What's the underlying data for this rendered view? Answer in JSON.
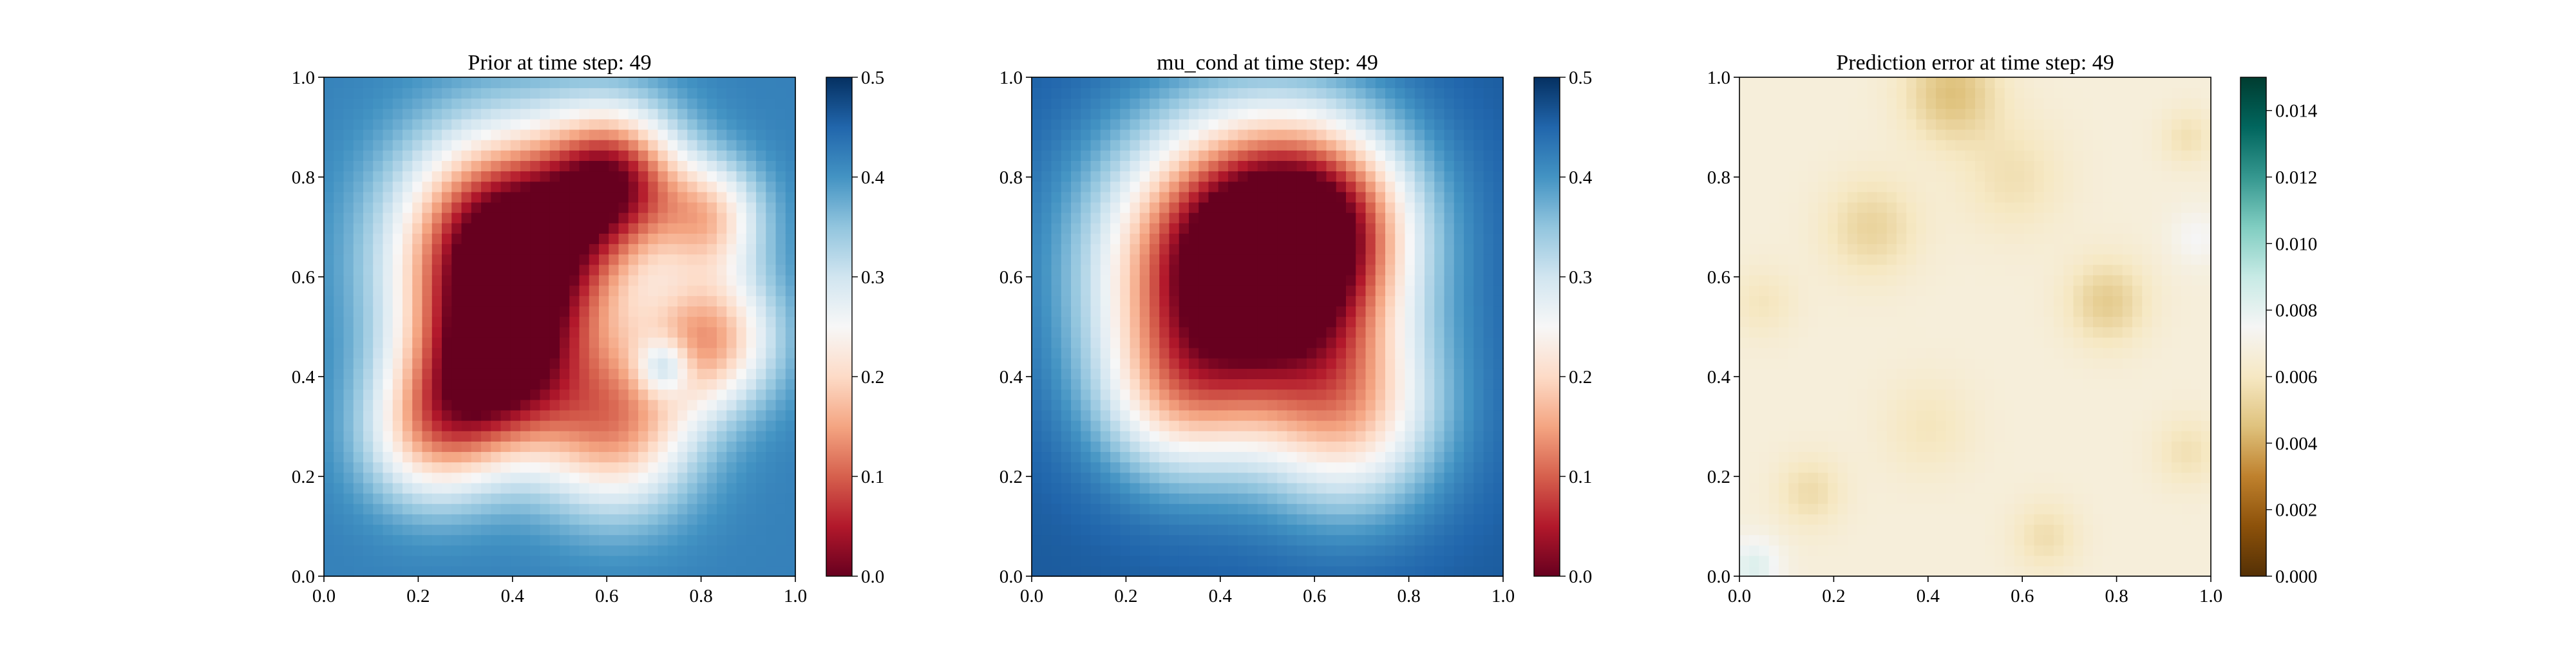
{
  "chart_data": [
    {
      "type": "heatmap",
      "title": "Prior at time step: 49",
      "xlim": [
        0.0,
        1.0
      ],
      "ylim": [
        0.0,
        1.0
      ],
      "x_ticks": [
        "0.0",
        "0.2",
        "0.4",
        "0.6",
        "0.8",
        "1.0"
      ],
      "y_ticks": [
        "0.0",
        "0.2",
        "0.4",
        "0.6",
        "0.8",
        "1.0"
      ],
      "colormap": "RdBu",
      "colorbar": {
        "min": 0.0,
        "max": 0.5,
        "ticks": [
          "0.0",
          "0.1",
          "0.2",
          "0.3",
          "0.4",
          "0.5"
        ]
      },
      "colors": [
        "#67001f",
        "#b2182b",
        "#d6604d",
        "#f4a582",
        "#fddbc7",
        "#f7f7f7",
        "#d1e5f0",
        "#92c5de",
        "#4393c3",
        "#2166ac",
        "#053061"
      ],
      "field": {
        "background": 0.42,
        "blobs": [
          {
            "x": 0.4,
            "y": 0.65,
            "a": -0.52,
            "s": 0.16
          },
          {
            "x": 0.62,
            "y": 0.8,
            "a": -0.3,
            "s": 0.1
          },
          {
            "x": 0.35,
            "y": 0.4,
            "a": -0.32,
            "s": 0.12
          },
          {
            "x": 0.62,
            "y": 0.3,
            "a": -0.26,
            "s": 0.12
          },
          {
            "x": 0.82,
            "y": 0.48,
            "a": -0.25,
            "s": 0.1
          },
          {
            "x": 0.82,
            "y": 0.72,
            "a": -0.2,
            "s": 0.08
          },
          {
            "x": 0.22,
            "y": 0.28,
            "a": -0.18,
            "s": 0.1
          },
          {
            "x": 0.72,
            "y": 0.42,
            "a": 0.14,
            "s": 0.04
          }
        ]
      }
    },
    {
      "type": "heatmap",
      "title": "mu_cond at time step: 49",
      "xlim": [
        0.0,
        1.0
      ],
      "ylim": [
        0.0,
        1.0
      ],
      "x_ticks": [
        "0.0",
        "0.2",
        "0.4",
        "0.6",
        "0.8",
        "1.0"
      ],
      "y_ticks": [
        "0.0",
        "0.2",
        "0.4",
        "0.6",
        "0.8",
        "1.0"
      ],
      "colormap": "RdBu",
      "colorbar": {
        "min": 0.0,
        "max": 0.5,
        "ticks": [
          "0.0",
          "0.1",
          "0.2",
          "0.3",
          "0.4",
          "0.5"
        ]
      },
      "colors": [
        "#67001f",
        "#b2182b",
        "#d6604d",
        "#f4a582",
        "#fddbc7",
        "#f7f7f7",
        "#d1e5f0",
        "#92c5de",
        "#4393c3",
        "#2166ac",
        "#053061"
      ],
      "field": {
        "background": 0.46,
        "blobs": [
          {
            "x": 0.45,
            "y": 0.62,
            "a": -0.55,
            "s": 0.2
          },
          {
            "x": 0.62,
            "y": 0.72,
            "a": -0.22,
            "s": 0.14
          },
          {
            "x": 0.68,
            "y": 0.32,
            "a": -0.22,
            "s": 0.14
          },
          {
            "x": 0.3,
            "y": 0.35,
            "a": -0.15,
            "s": 0.12
          }
        ]
      }
    },
    {
      "type": "heatmap",
      "title": "Prediction error at time step: 49",
      "xlim": [
        0.0,
        1.0
      ],
      "ylim": [
        0.0,
        1.0
      ],
      "x_ticks": [
        "0.0",
        "0.2",
        "0.4",
        "0.6",
        "0.8",
        "1.0"
      ],
      "y_ticks": [
        "0.0",
        "0.2",
        "0.4",
        "0.6",
        "0.8",
        "1.0"
      ],
      "colormap": "BrBG",
      "colorbar": {
        "min": 0.0,
        "max": 0.015,
        "ticks": [
          "0.000",
          "0.002",
          "0.004",
          "0.006",
          "0.008",
          "0.010",
          "0.012",
          "0.014"
        ]
      },
      "colors": [
        "#543005",
        "#8c510a",
        "#bf812d",
        "#dfc27d",
        "#f6e8c3",
        "#f5f5f5",
        "#c7eae5",
        "#80cdc1",
        "#35978f",
        "#01665e",
        "#003c30"
      ],
      "field": {
        "background": 0.0067,
        "blobs": [
          {
            "x": 0.45,
            "y": 0.97,
            "a": -0.0022,
            "s": 0.07
          },
          {
            "x": 0.28,
            "y": 0.7,
            "a": -0.0015,
            "s": 0.07
          },
          {
            "x": 0.78,
            "y": 0.55,
            "a": -0.0018,
            "s": 0.06
          },
          {
            "x": 0.58,
            "y": 0.8,
            "a": -0.001,
            "s": 0.08
          },
          {
            "x": 0.15,
            "y": 0.17,
            "a": -0.0012,
            "s": 0.05
          },
          {
            "x": 0.65,
            "y": 0.08,
            "a": -0.0011,
            "s": 0.05
          },
          {
            "x": 0.4,
            "y": 0.3,
            "a": -0.0008,
            "s": 0.07
          },
          {
            "x": 0.95,
            "y": 0.88,
            "a": -0.001,
            "s": 0.04
          },
          {
            "x": 0.95,
            "y": 0.25,
            "a": -0.001,
            "s": 0.05
          },
          {
            "x": 0.05,
            "y": 0.55,
            "a": -0.0008,
            "s": 0.05
          },
          {
            "x": 0.03,
            "y": 0.02,
            "a": 0.0016,
            "s": 0.04
          },
          {
            "x": 0.97,
            "y": 0.68,
            "a": 0.0008,
            "s": 0.04
          }
        ]
      }
    }
  ]
}
